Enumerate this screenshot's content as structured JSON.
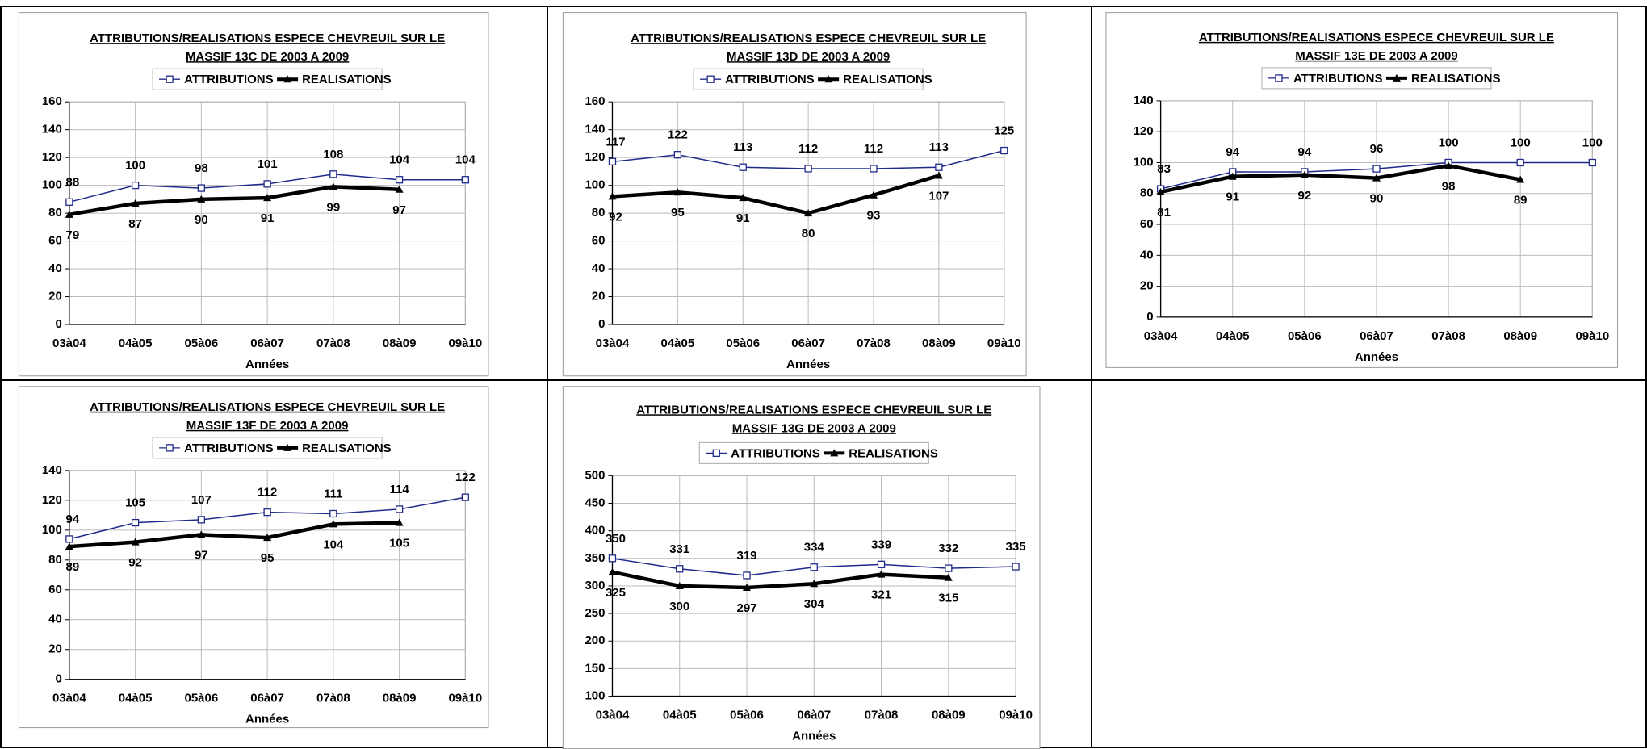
{
  "chart_data": [
    {
      "type": "line",
      "title": [
        "ATTRIBUTIONS/REALISATIONS ESPECE CHEVREUIL SUR LE",
        "MASSIF 13C DE 2003 A 2009"
      ],
      "xlabel": "Années",
      "categories": [
        "03à04",
        "04à05",
        "05à06",
        "06à07",
        "07à08",
        "08à09",
        "09à10"
      ],
      "series": [
        {
          "name": "ATTRIBUTIONS",
          "color": "#1f2a8a",
          "values": [
            88,
            100,
            98,
            101,
            108,
            104,
            104
          ]
        },
        {
          "name": "REALISATIONS",
          "color": "#000000",
          "values": [
            79,
            87,
            90,
            91,
            99,
            97,
            null
          ]
        }
      ],
      "ylim": [
        0,
        160
      ],
      "yticks": [
        0,
        20,
        40,
        60,
        80,
        100,
        120,
        140,
        160
      ],
      "grid": true
    },
    {
      "type": "line",
      "title": [
        "ATTRIBUTIONS/REALISATIONS ESPECE CHEVREUIL SUR LE",
        "MASSIF 13D DE 2003 A 2009"
      ],
      "xlabel": "Années",
      "categories": [
        "03à04",
        "04à05",
        "05à06",
        "06à07",
        "07à08",
        "08à09",
        "09à10"
      ],
      "series": [
        {
          "name": "ATTRIBUTIONS",
          "color": "#1f2a8a",
          "values": [
            117,
            122,
            113,
            112,
            112,
            113,
            125
          ]
        },
        {
          "name": "REALISATIONS",
          "color": "#000000",
          "values": [
            92,
            95,
            91,
            80,
            93,
            107,
            null
          ]
        }
      ],
      "ylim": [
        0,
        160
      ],
      "yticks": [
        0,
        20,
        40,
        60,
        80,
        100,
        120,
        140,
        160
      ],
      "grid": true
    },
    {
      "type": "line",
      "title": [
        "ATTRIBUTIONS/REALISATIONS ESPECE CHEVREUIL SUR LE",
        "MASSIF 13E DE 2003 A 2009"
      ],
      "xlabel": "Années",
      "categories": [
        "03à04",
        "04à05",
        "05à06",
        "06à07",
        "07à08",
        "08à09",
        "09à10"
      ],
      "series": [
        {
          "name": "ATTRIBUTIONS",
          "color": "#1f2a8a",
          "values": [
            83,
            94,
            94,
            96,
            100,
            100,
            100
          ]
        },
        {
          "name": "REALISATIONS",
          "color": "#000000",
          "values": [
            81,
            91,
            92,
            90,
            98,
            89,
            null
          ]
        }
      ],
      "ylim": [
        0,
        140
      ],
      "yticks": [
        0,
        20,
        40,
        60,
        80,
        100,
        120,
        140
      ],
      "grid": true
    },
    {
      "type": "line",
      "title": [
        "ATTRIBUTIONS/REALISATIONS ESPECE CHEVREUIL SUR LE",
        "MASSIF 13F DE 2003 A 2009"
      ],
      "xlabel": "Années",
      "categories": [
        "03à04",
        "04à05",
        "05à06",
        "06à07",
        "07à08",
        "08à09",
        "09à10"
      ],
      "series": [
        {
          "name": "ATTRIBUTIONS",
          "color": "#1f2a8a",
          "values": [
            94,
            105,
            107,
            112,
            111,
            114,
            122
          ]
        },
        {
          "name": "REALISATIONS",
          "color": "#000000",
          "values": [
            89,
            92,
            97,
            95,
            104,
            105,
            null
          ]
        }
      ],
      "ylim": [
        0,
        140
      ],
      "yticks": [
        0,
        20,
        40,
        60,
        80,
        100,
        120,
        140
      ],
      "grid": true
    },
    {
      "type": "line",
      "title": [
        "ATTRIBUTIONS/REALISATIONS ESPECE CHEVREUIL SUR LE",
        "MASSIF 13G DE 2003 A 2009"
      ],
      "xlabel": "Années",
      "categories": [
        "03à04",
        "04à05",
        "05à06",
        "06à07",
        "07à08",
        "08à09",
        "09à10"
      ],
      "series": [
        {
          "name": "ATTRIBUTIONS",
          "color": "#1f2a8a",
          "values": [
            350,
            331,
            319,
            334,
            339,
            332,
            335
          ]
        },
        {
          "name": "REALISATIONS",
          "color": "#000000",
          "values": [
            325,
            300,
            297,
            304,
            321,
            315,
            null
          ]
        }
      ],
      "ylim": [
        100,
        500
      ],
      "yticks": [
        100,
        150,
        200,
        250,
        300,
        350,
        400,
        450,
        500
      ],
      "grid": true
    }
  ]
}
